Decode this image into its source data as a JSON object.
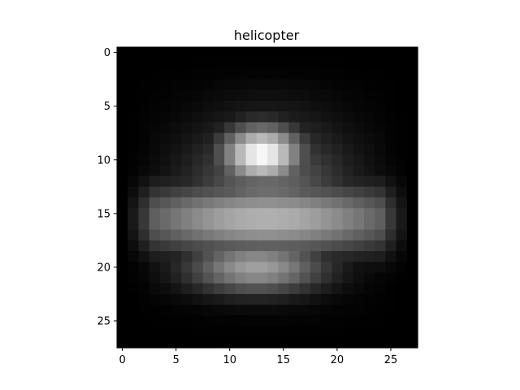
{
  "chart_data": {
    "type": "heatmap",
    "title": "helicopter",
    "xlabel": "",
    "ylabel": "",
    "colormap": "gray",
    "rows": 28,
    "cols": 28,
    "x_ticks": [
      0,
      5,
      10,
      15,
      20,
      25
    ],
    "y_ticks": [
      0,
      5,
      10,
      15,
      20,
      25
    ],
    "xlim": [
      -0.5,
      27.5
    ],
    "ylim": [
      27.5,
      -0.5
    ],
    "value_range": [
      0,
      255
    ],
    "peak_value_at": {
      "row": 9.5,
      "col": 13
    },
    "horizontal_band_rows": [
      14,
      17
    ],
    "grid": false
  }
}
